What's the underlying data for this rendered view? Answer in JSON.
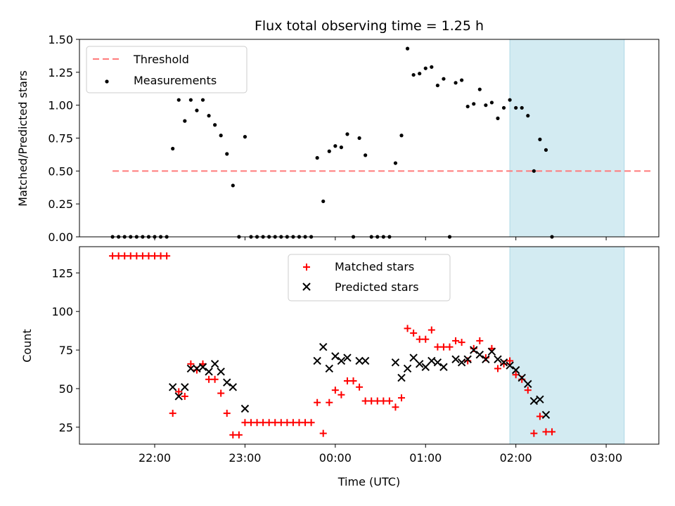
{
  "chart_data": [
    {
      "type": "scatter",
      "title": "Flux total observing time = 1.25 h",
      "xlabel": "",
      "ylabel": "Matched/Predicted stars",
      "ylim": [
        0,
        1.5
      ],
      "xlim": [
        "21:10",
        "03:35"
      ],
      "yticks": [
        "0.00",
        "0.25",
        "0.50",
        "0.75",
        "1.00",
        "1.25",
        "1.50"
      ],
      "highlight_span": [
        "01:56",
        "03:12"
      ],
      "highlight_color": "#d3ebf2",
      "threshold": {
        "name": "Threshold",
        "y": 0.5,
        "x_start": "21:32",
        "x_end": "03:30",
        "color": "#ff7b7b"
      },
      "legend": {
        "position": "top-left",
        "entries": [
          "Threshold",
          "Measurements"
        ]
      },
      "series": [
        {
          "name": "Measurements",
          "color": "#000000",
          "points": [
            [
              "21:32",
              0
            ],
            [
              "21:36",
              0
            ],
            [
              "21:40",
              0
            ],
            [
              "21:44",
              0
            ],
            [
              "21:48",
              0
            ],
            [
              "21:52",
              0
            ],
            [
              "21:56",
              0
            ],
            [
              "22:00",
              0
            ],
            [
              "22:04",
              0
            ],
            [
              "22:08",
              0
            ],
            [
              "22:12",
              0.67
            ],
            [
              "22:16",
              1.04
            ],
            [
              "22:20",
              0.88
            ],
            [
              "22:24",
              1.04
            ],
            [
              "22:28",
              0.96
            ],
            [
              "22:32",
              1.04
            ],
            [
              "22:36",
              0.92
            ],
            [
              "22:40",
              0.85
            ],
            [
              "22:44",
              0.77
            ],
            [
              "22:48",
              0.63
            ],
            [
              "22:52",
              0.39
            ],
            [
              "22:56",
              0
            ],
            [
              "23:00",
              0.76
            ],
            [
              "23:04",
              0
            ],
            [
              "23:08",
              0
            ],
            [
              "23:12",
              0
            ],
            [
              "23:16",
              0
            ],
            [
              "23:20",
              0
            ],
            [
              "23:24",
              0
            ],
            [
              "23:28",
              0
            ],
            [
              "23:32",
              0
            ],
            [
              "23:36",
              0
            ],
            [
              "23:40",
              0
            ],
            [
              "23:44",
              0
            ],
            [
              "23:48",
              0.6
            ],
            [
              "23:52",
              0.27
            ],
            [
              "23:56",
              0.65
            ],
            [
              "00:00",
              0.69
            ],
            [
              "00:04",
              0.68
            ],
            [
              "00:08",
              0.78
            ],
            [
              "00:12",
              0
            ],
            [
              "00:16",
              0.75
            ],
            [
              "00:20",
              0.62
            ],
            [
              "00:24",
              0
            ],
            [
              "00:28",
              0
            ],
            [
              "00:32",
              0
            ],
            [
              "00:36",
              0
            ],
            [
              "00:40",
              0.56
            ],
            [
              "00:44",
              0.77
            ],
            [
              "00:48",
              1.43
            ],
            [
              "00:52",
              1.23
            ],
            [
              "00:56",
              1.24
            ],
            [
              "01:00",
              1.28
            ],
            [
              "01:04",
              1.29
            ],
            [
              "01:08",
              1.15
            ],
            [
              "01:12",
              1.2
            ],
            [
              "01:16",
              0
            ],
            [
              "01:20",
              1.17
            ],
            [
              "01:24",
              1.19
            ],
            [
              "01:28",
              0.99
            ],
            [
              "01:32",
              1.01
            ],
            [
              "01:36",
              1.12
            ],
            [
              "01:40",
              1.0
            ],
            [
              "01:44",
              1.02
            ],
            [
              "01:48",
              0.9
            ],
            [
              "01:52",
              0.98
            ],
            [
              "01:56",
              1.04
            ],
            [
              "02:00",
              0.98
            ],
            [
              "02:04",
              0.98
            ],
            [
              "02:08",
              0.92
            ],
            [
              "02:12",
              0.5
            ],
            [
              "02:16",
              0.74
            ],
            [
              "02:20",
              0.66
            ],
            [
              "02:24",
              0
            ]
          ]
        }
      ]
    },
    {
      "type": "scatter",
      "title": "",
      "xlabel": "Time (UTC)",
      "ylabel": "Count",
      "ylim": [
        14,
        142
      ],
      "xlim": [
        "21:10",
        "03:35"
      ],
      "yticks": [
        "25",
        "50",
        "75",
        "100",
        "125"
      ],
      "xticks": [
        "22:00",
        "23:00",
        "00:00",
        "01:00",
        "02:00",
        "03:00"
      ],
      "highlight_span": [
        "01:56",
        "03:12"
      ],
      "legend": {
        "position": "top-center",
        "entries": [
          "Matched stars",
          "Predicted stars"
        ]
      },
      "series": [
        {
          "name": "Matched stars",
          "marker": "plus",
          "color": "#ff0000",
          "points": [
            [
              "21:32",
              136
            ],
            [
              "21:36",
              136
            ],
            [
              "21:40",
              136
            ],
            [
              "21:44",
              136
            ],
            [
              "21:48",
              136
            ],
            [
              "21:52",
              136
            ],
            [
              "21:56",
              136
            ],
            [
              "22:00",
              136
            ],
            [
              "22:04",
              136
            ],
            [
              "22:08",
              136
            ],
            [
              "22:12",
              34
            ],
            [
              "22:16",
              48
            ],
            [
              "22:20",
              45
            ],
            [
              "22:24",
              66
            ],
            [
              "22:28",
              62
            ],
            [
              "22:32",
              66
            ],
            [
              "22:36",
              56
            ],
            [
              "22:40",
              56
            ],
            [
              "22:44",
              47
            ],
            [
              "22:48",
              34
            ],
            [
              "22:52",
              20
            ],
            [
              "22:56",
              20
            ],
            [
              "23:00",
              28
            ],
            [
              "23:04",
              28
            ],
            [
              "23:08",
              28
            ],
            [
              "23:12",
              28
            ],
            [
              "23:16",
              28
            ],
            [
              "23:20",
              28
            ],
            [
              "23:24",
              28
            ],
            [
              "23:28",
              28
            ],
            [
              "23:32",
              28
            ],
            [
              "23:36",
              28
            ],
            [
              "23:40",
              28
            ],
            [
              "23:44",
              28
            ],
            [
              "23:48",
              41
            ],
            [
              "23:52",
              21
            ],
            [
              "23:56",
              41
            ],
            [
              "00:00",
              49
            ],
            [
              "00:04",
              46
            ],
            [
              "00:08",
              55
            ],
            [
              "00:12",
              55
            ],
            [
              "00:16",
              51
            ],
            [
              "00:20",
              42
            ],
            [
              "00:24",
              42
            ],
            [
              "00:28",
              42
            ],
            [
              "00:32",
              42
            ],
            [
              "00:36",
              42
            ],
            [
              "00:40",
              38
            ],
            [
              "00:44",
              44
            ],
            [
              "00:48",
              89
            ],
            [
              "00:52",
              86
            ],
            [
              "00:56",
              82
            ],
            [
              "01:00",
              82
            ],
            [
              "01:04",
              88
            ],
            [
              "01:08",
              77
            ],
            [
              "01:12",
              77
            ],
            [
              "01:16",
              77
            ],
            [
              "01:20",
              81
            ],
            [
              "01:24",
              80
            ],
            [
              "01:28",
              68
            ],
            [
              "01:32",
              76
            ],
            [
              "01:36",
              81
            ],
            [
              "01:40",
              70
            ],
            [
              "01:44",
              76
            ],
            [
              "01:48",
              63
            ],
            [
              "01:52",
              66
            ],
            [
              "01:56",
              68
            ],
            [
              "02:00",
              59
            ],
            [
              "02:04",
              56
            ],
            [
              "02:08",
              49
            ],
            [
              "02:12",
              21
            ],
            [
              "02:16",
              32
            ],
            [
              "02:20",
              22
            ],
            [
              "02:24",
              22
            ]
          ]
        },
        {
          "name": "Predicted stars",
          "marker": "x",
          "color": "#000000",
          "points": [
            [
              "22:12",
              51
            ],
            [
              "22:16",
              45
            ],
            [
              "22:20",
              51
            ],
            [
              "22:24",
              63
            ],
            [
              "22:28",
              63
            ],
            [
              "22:32",
              64
            ],
            [
              "22:36",
              61
            ],
            [
              "22:40",
              66
            ],
            [
              "22:44",
              61
            ],
            [
              "22:48",
              54
            ],
            [
              "22:52",
              51
            ],
            [
              "23:00",
              37
            ],
            [
              "23:48",
              68
            ],
            [
              "23:52",
              77
            ],
            [
              "23:56",
              63
            ],
            [
              "00:00",
              71
            ],
            [
              "00:04",
              68
            ],
            [
              "00:08",
              70
            ],
            [
              "00:16",
              68
            ],
            [
              "00:20",
              68
            ],
            [
              "00:40",
              67
            ],
            [
              "00:44",
              57
            ],
            [
              "00:48",
              63
            ],
            [
              "00:52",
              70
            ],
            [
              "00:56",
              66
            ],
            [
              "01:00",
              64
            ],
            [
              "01:04",
              68
            ],
            [
              "01:08",
              67
            ],
            [
              "01:12",
              64
            ],
            [
              "01:20",
              69
            ],
            [
              "01:24",
              67
            ],
            [
              "01:28",
              69
            ],
            [
              "01:32",
              75
            ],
            [
              "01:36",
              72
            ],
            [
              "01:40",
              69
            ],
            [
              "01:44",
              74
            ],
            [
              "01:48",
              69
            ],
            [
              "01:52",
              67
            ],
            [
              "01:56",
              65
            ],
            [
              "02:00",
              62
            ],
            [
              "02:04",
              57
            ],
            [
              "02:08",
              53
            ],
            [
              "02:12",
              42
            ],
            [
              "02:16",
              43
            ],
            [
              "02:20",
              33
            ]
          ]
        }
      ]
    }
  ]
}
